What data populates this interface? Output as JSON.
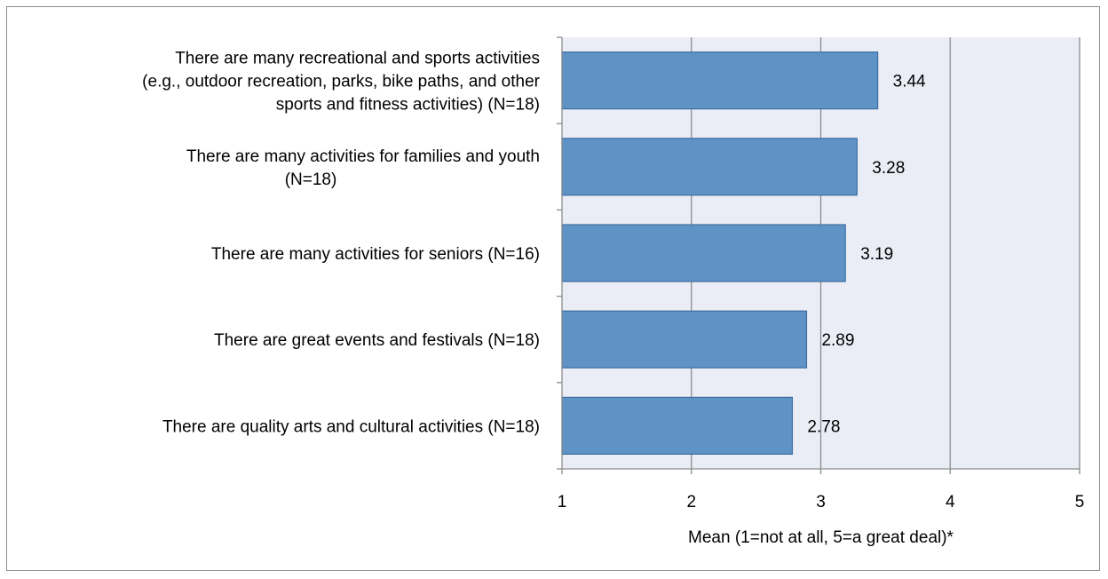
{
  "chart_data": {
    "type": "bar",
    "orientation": "horizontal",
    "title": "",
    "xlabel": "Mean (1=not at all, 5=a great deal)*",
    "ylabel": "",
    "xlim": [
      1,
      5
    ],
    "xticks": [
      "1",
      "2",
      "3",
      "4",
      "5"
    ],
    "grid": "vertical",
    "legend": "none",
    "colors": {
      "bar_fill": "#5f93c6",
      "bar_stroke": "#3d6da0",
      "plot_background": "#eaedf6",
      "gridline": "#8c8c8c",
      "axis": "#8c8c8c"
    },
    "categories": [
      [
        "There are many recreational and sports activities",
        "(e.g., outdoor recreation, parks, bike paths, and other",
        "sports and fitness activities) (N=18)"
      ],
      [
        "There are many activities for families and youth",
        "(N=18)"
      ],
      [
        "There are many activities for seniors (N=16)"
      ],
      [
        "There are great events and festivals (N=18)"
      ],
      [
        "There are quality arts and cultural activities (N=18)"
      ]
    ],
    "values": [
      3.44,
      3.28,
      3.19,
      2.89,
      2.78
    ],
    "data_labels": [
      "3.44",
      "3.28",
      "3.19",
      "2.89",
      "2.78"
    ]
  }
}
